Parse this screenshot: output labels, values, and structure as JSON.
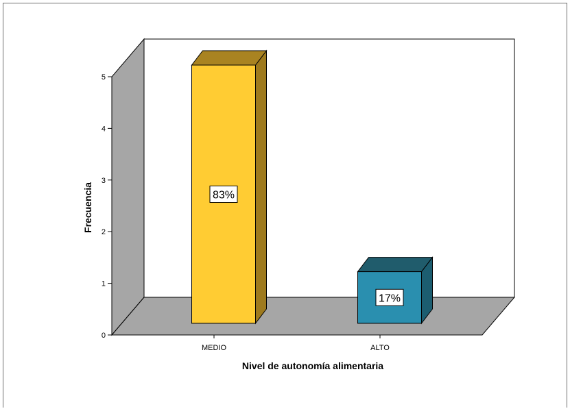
{
  "chart_data": {
    "type": "bar",
    "categories": [
      "MEDIO",
      "ALTO"
    ],
    "values": [
      5,
      1
    ],
    "data_labels": [
      "83%",
      "17%"
    ],
    "xlabel": "Nivel de autonomía alimentaria",
    "ylabel": "Frecuencia",
    "yticks": [
      "0",
      "1",
      "2",
      "3",
      "4",
      "5"
    ],
    "ylim": [
      0,
      5
    ],
    "style": "3d",
    "grid": false,
    "colors": {
      "bars": [
        "#FFCC33",
        "#2A8FAF"
      ],
      "bar_sides": [
        "#9E7A1E",
        "#1C5D70"
      ],
      "bar_tops": [
        "#A98321",
        "#205C6C"
      ],
      "walls": "#A6A6A6",
      "background": "#FFFFFF",
      "frame": "#000000"
    }
  }
}
